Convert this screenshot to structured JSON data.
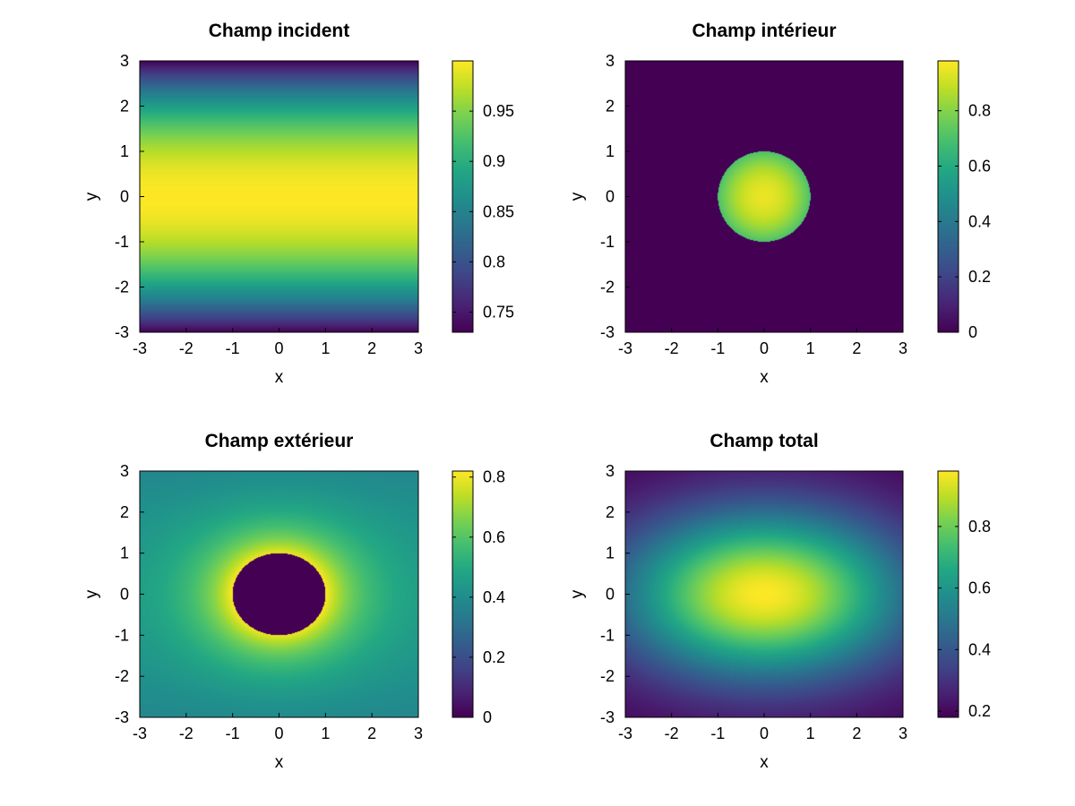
{
  "chart_data": [
    {
      "type": "heatmap",
      "title": "Champ incident",
      "xlabel": "x",
      "ylabel": "y",
      "xlim": [
        -3,
        3
      ],
      "ylim": [
        -3,
        3
      ],
      "xticks": [
        -3,
        -2,
        -1,
        0,
        1,
        2,
        3
      ],
      "yticks": [
        -3,
        -2,
        -1,
        0,
        1,
        2,
        3
      ],
      "field": "incident",
      "colorbar": {
        "min": 0.73,
        "max": 1.0,
        "ticks": [
          0.75,
          0.8,
          0.85,
          0.9,
          0.95
        ]
      }
    },
    {
      "type": "heatmap",
      "title": "Champ intérieur",
      "xlabel": "x",
      "ylabel": "y",
      "xlim": [
        -3,
        3
      ],
      "ylim": [
        -3,
        3
      ],
      "xticks": [
        -3,
        -2,
        -1,
        0,
        1,
        2,
        3
      ],
      "yticks": [
        -3,
        -2,
        -1,
        0,
        1,
        2,
        3
      ],
      "field": "interior",
      "colorbar": {
        "min": 0,
        "max": 0.98,
        "ticks": [
          0,
          0.2,
          0.4,
          0.6,
          0.8
        ]
      }
    },
    {
      "type": "heatmap",
      "title": "Champ extérieur",
      "xlabel": "x",
      "ylabel": "y",
      "xlim": [
        -3,
        3
      ],
      "ylim": [
        -3,
        3
      ],
      "xticks": [
        -3,
        -2,
        -1,
        0,
        1,
        2,
        3
      ],
      "yticks": [
        -3,
        -2,
        -1,
        0,
        1,
        2,
        3
      ],
      "field": "exterior",
      "colorbar": {
        "min": 0,
        "max": 0.82,
        "ticks": [
          0,
          0.2,
          0.4,
          0.6,
          0.8
        ]
      }
    },
    {
      "type": "heatmap",
      "title": "Champ total",
      "xlabel": "x",
      "ylabel": "y",
      "xlim": [
        -3,
        3
      ],
      "ylim": [
        -3,
        3
      ],
      "xticks": [
        -3,
        -2,
        -1,
        0,
        1,
        2,
        3
      ],
      "yticks": [
        -3,
        -2,
        -1,
        0,
        1,
        2,
        3
      ],
      "field": "total",
      "colorbar": {
        "min": 0.18,
        "max": 0.98,
        "ticks": [
          0.2,
          0.4,
          0.6,
          0.8
        ]
      }
    }
  ],
  "colormap": "viridis"
}
